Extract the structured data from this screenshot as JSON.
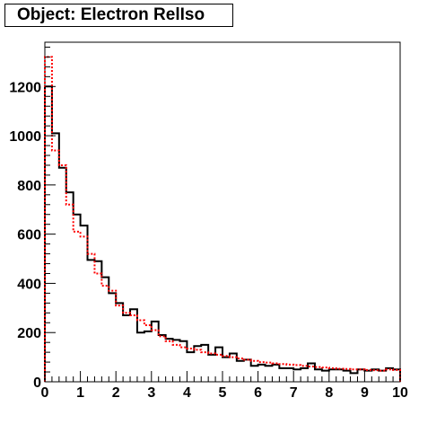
{
  "title": "Object: Electron RelIso",
  "colors": {
    "series_black": "#000000",
    "series_red": "#ff0000",
    "frame": "#000000"
  },
  "chart_data": {
    "type": "histogram",
    "title": "Object: Electron RelIso",
    "xlabel": "",
    "ylabel": "",
    "xlim": [
      0,
      10
    ],
    "ylim": [
      0,
      1380
    ],
    "grid": false,
    "bin_width": 0.2,
    "x_ticks": [
      0,
      1,
      2,
      3,
      4,
      5,
      6,
      7,
      8,
      9,
      10
    ],
    "x_tick_labels": [
      "0",
      "1",
      "2",
      "3",
      "4",
      "5",
      "6",
      "7",
      "8",
      "9",
      "10"
    ],
    "y_ticks": [
      0,
      200,
      400,
      600,
      800,
      1000,
      1200
    ],
    "y_tick_labels": [
      "0",
      "200",
      "400",
      "600",
      "800",
      "1000",
      "1200"
    ],
    "series": [
      {
        "style": "solid",
        "color": "#000000",
        "values": [
          1200,
          1010,
          870,
          770,
          680,
          635,
          495,
          490,
          425,
          360,
          320,
          270,
          295,
          200,
          205,
          245,
          190,
          175,
          170,
          165,
          120,
          145,
          150,
          110,
          140,
          100,
          115,
          85,
          90,
          65,
          70,
          65,
          70,
          55,
          55,
          50,
          55,
          75,
          50,
          45,
          50,
          50,
          45,
          35,
          50,
          45,
          50,
          45,
          55,
          50
        ]
      },
      {
        "style": "dotted",
        "color": "#ff0000",
        "values": [
          1320,
          940,
          880,
          720,
          610,
          590,
          520,
          440,
          390,
          370,
          310,
          280,
          270,
          250,
          230,
          210,
          185,
          165,
          150,
          140,
          135,
          130,
          120,
          115,
          110,
          105,
          100,
          95,
          90,
          85,
          80,
          78,
          75,
          72,
          70,
          68,
          65,
          62,
          60,
          58,
          55,
          53,
          52,
          50,
          50,
          48,
          47,
          45,
          50,
          48
        ]
      }
    ]
  }
}
